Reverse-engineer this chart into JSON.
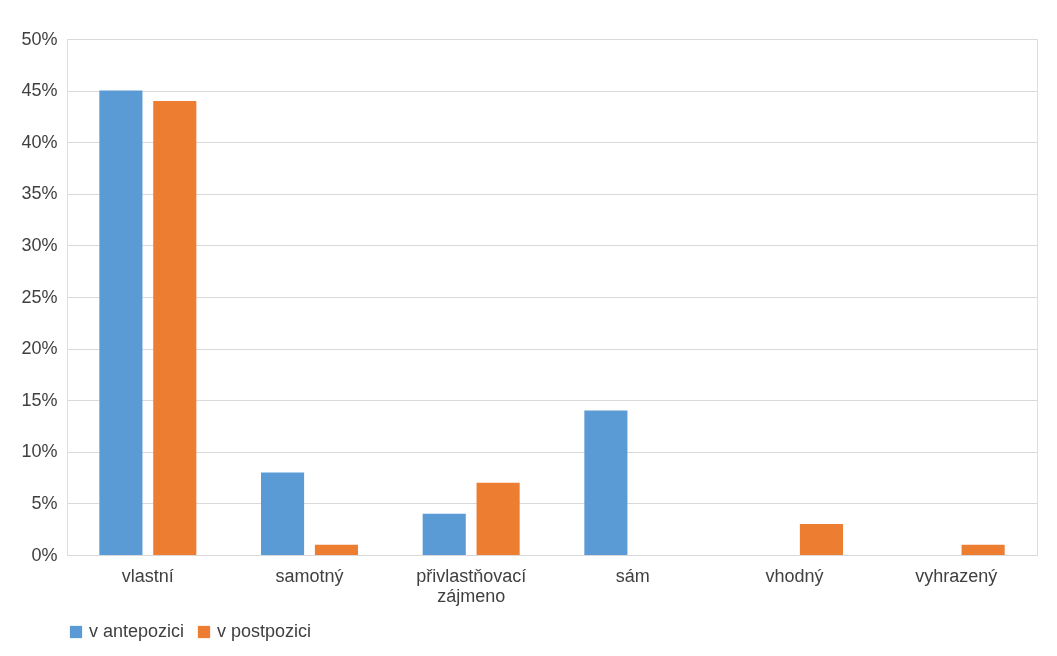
{
  "chart_data": {
    "type": "bar",
    "categories": [
      "vlastní",
      "samotný",
      "přivlastňovací zájmeno",
      "sám",
      "vhodný",
      "vyhrazený"
    ],
    "series": [
      {
        "name": "v antepozici",
        "color": "#5b9bd5",
        "values": [
          45,
          8,
          4,
          14,
          null,
          null
        ]
      },
      {
        "name": "v postpozici",
        "color": "#ed7d31",
        "values": [
          44,
          1,
          7,
          null,
          3,
          1
        ]
      }
    ],
    "ylim": [
      0,
      50
    ],
    "yticks": [
      {
        "value": 0,
        "label": "0%"
      },
      {
        "value": 5,
        "label": "5%"
      },
      {
        "value": 10,
        "label": "10%"
      },
      {
        "value": 15,
        "label": "15%"
      },
      {
        "value": 20,
        "label": "20%"
      },
      {
        "value": 25,
        "label": "25%"
      },
      {
        "value": 30,
        "label": "30%"
      },
      {
        "value": 35,
        "label": "35%"
      },
      {
        "value": 40,
        "label": "40%"
      },
      {
        "value": 45,
        "label": "45%"
      },
      {
        "value": 50,
        "label": "50%"
      }
    ],
    "grid": "y",
    "legend": "bottom"
  }
}
